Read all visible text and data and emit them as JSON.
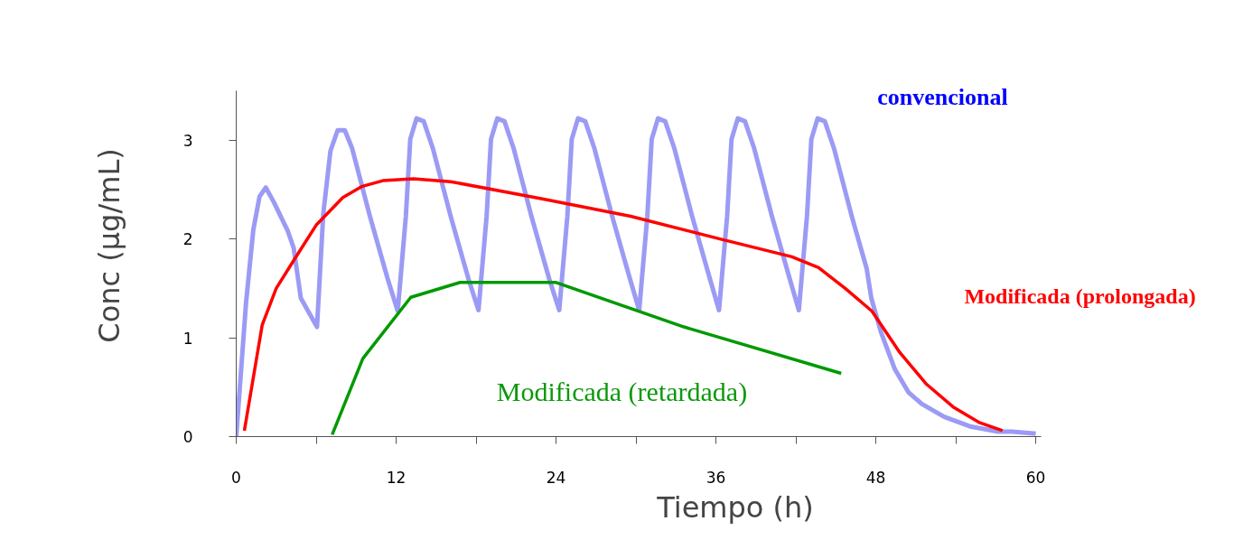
{
  "chart_data": {
    "type": "line",
    "xlabel": "Tiempo (h)",
    "ylabel": "Conc (µg/mL)",
    "xlim": [
      0,
      60.4
    ],
    "ylim": [
      0,
      3.5
    ],
    "xticks": [
      0,
      {
        "value": 6,
        "label": null
      },
      12,
      {
        "value": 18,
        "label": null
      },
      24,
      {
        "value": 30,
        "label": null
      },
      36,
      {
        "value": 42,
        "label": null
      },
      48,
      {
        "value": 54,
        "label": null
      },
      60
    ],
    "yticks": [
      0,
      1,
      2,
      3
    ],
    "grid": false,
    "legend": false,
    "marker": "none",
    "line_style": "solid",
    "series": [
      {
        "name": "convencional",
        "color": "#9b9bf5",
        "x": [
          0,
          0.74,
          1.28,
          1.75,
          2.22,
          2.83,
          3.84,
          4.31,
          4.85,
          6.06,
          6.53,
          7.07,
          7.61,
          8.15,
          8.69,
          10.03,
          11.38,
          12.12,
          12.73,
          13.06,
          13.53,
          14.07,
          14.75,
          16.09,
          17.44,
          18.18,
          18.79,
          19.12,
          19.59,
          20.13,
          20.81,
          22.15,
          23.5,
          24.24,
          24.85,
          25.18,
          25.65,
          26.19,
          26.87,
          28.21,
          29.56,
          30.24,
          30.85,
          31.18,
          31.65,
          32.19,
          32.87,
          34.21,
          35.56,
          36.23,
          36.84,
          37.17,
          37.64,
          38.18,
          38.86,
          40.2,
          41.55,
          42.22,
          42.83,
          43.16,
          43.63,
          44.17,
          44.85,
          46.19,
          47.31,
          47.66,
          48.4,
          49.43,
          50.44,
          51.45,
          53.13,
          55.15,
          57.17,
          58.2,
          60.0
        ],
        "values": [
          0,
          1.36,
          2.09,
          2.43,
          2.52,
          2.37,
          2.09,
          1.91,
          1.4,
          1.11,
          2.25,
          2.89,
          3.1,
          3.1,
          2.92,
          2.23,
          1.59,
          1.27,
          2.23,
          3.01,
          3.22,
          3.19,
          2.92,
          2.23,
          1.59,
          1.28,
          2.23,
          3.01,
          3.22,
          3.19,
          2.92,
          2.23,
          1.59,
          1.28,
          2.23,
          3.01,
          3.22,
          3.19,
          2.92,
          2.23,
          1.59,
          1.28,
          2.23,
          3.01,
          3.22,
          3.19,
          2.92,
          2.23,
          1.59,
          1.28,
          2.23,
          3.01,
          3.22,
          3.19,
          2.92,
          2.23,
          1.59,
          1.28,
          2.23,
          3.01,
          3.22,
          3.19,
          2.92,
          2.23,
          1.7,
          1.4,
          1.05,
          0.68,
          0.45,
          0.33,
          0.2,
          0.1,
          0.05,
          0.05,
          0.03
        ]
      },
      {
        "name": "Modificada (prolongada)",
        "color": "#ff0000",
        "x": [
          0.61,
          1.95,
          3.0,
          4.3,
          6.0,
          8.0,
          9.4,
          11.0,
          13.3,
          16.1,
          22.8,
          29.6,
          36.3,
          41.7,
          43.7,
          45.7,
          47.7,
          49.8,
          51.8,
          53.8,
          55.8,
          57.5
        ],
        "values": [
          0.06,
          1.13,
          1.5,
          1.78,
          2.14,
          2.42,
          2.53,
          2.59,
          2.61,
          2.58,
          2.41,
          2.23,
          2.0,
          1.82,
          1.71,
          1.5,
          1.27,
          0.85,
          0.53,
          0.3,
          0.14,
          0.06
        ]
      },
      {
        "name": "Modificada (retardada)",
        "color": "#009900",
        "x": [
          7.2,
          9.5,
          13.1,
          16.8,
          24.0,
          33.6,
          45.4
        ],
        "values": [
          0.02,
          0.79,
          1.41,
          1.56,
          1.56,
          1.11,
          0.64
        ]
      }
    ]
  }
}
